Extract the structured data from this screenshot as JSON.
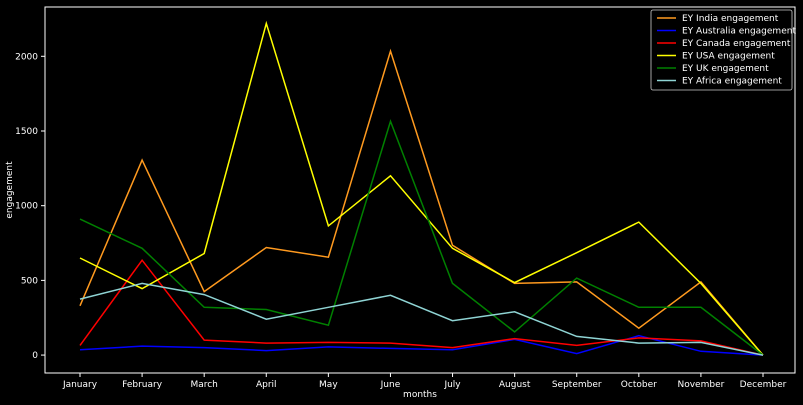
{
  "chart_data": {
    "type": "line",
    "xlabel": "months",
    "ylabel": "engagement",
    "ylim": [
      -120,
      2330
    ],
    "yticks": [
      0,
      500,
      1000,
      1500,
      2000
    ],
    "categories": [
      "January",
      "February",
      "March",
      "April",
      "May",
      "June",
      "July",
      "August",
      "September",
      "October",
      "November",
      "December"
    ],
    "legend_position": "top-right",
    "grid": false,
    "series": [
      {
        "name": "EY India engagement",
        "color": "#ff9a1f",
        "values": [
          330,
          1305,
          425,
          720,
          655,
          2035,
          735,
          480,
          490,
          180,
          490,
          0
        ]
      },
      {
        "name": "EY Australia engagement",
        "color": "#0000ff",
        "values": [
          35,
          60,
          50,
          30,
          55,
          45,
          35,
          105,
          10,
          130,
          25,
          0
        ]
      },
      {
        "name": "EY Canada engagement",
        "color": "#ff0000",
        "values": [
          65,
          635,
          100,
          80,
          85,
          80,
          50,
          110,
          65,
          115,
          95,
          0
        ]
      },
      {
        "name": "EY USA engagement",
        "color": "#ffff00",
        "values": [
          650,
          445,
          680,
          2220,
          865,
          1200,
          715,
          485,
          685,
          890,
          480,
          0
        ]
      },
      {
        "name": "EY UK engagement",
        "color": "#008000",
        "values": [
          910,
          715,
          320,
          305,
          200,
          1565,
          480,
          155,
          515,
          320,
          320,
          0
        ]
      },
      {
        "name": "EY Africa engagement",
        "color": "#8fd4d4",
        "values": [
          375,
          480,
          405,
          240,
          320,
          400,
          230,
          290,
          125,
          80,
          85,
          0
        ]
      }
    ]
  }
}
